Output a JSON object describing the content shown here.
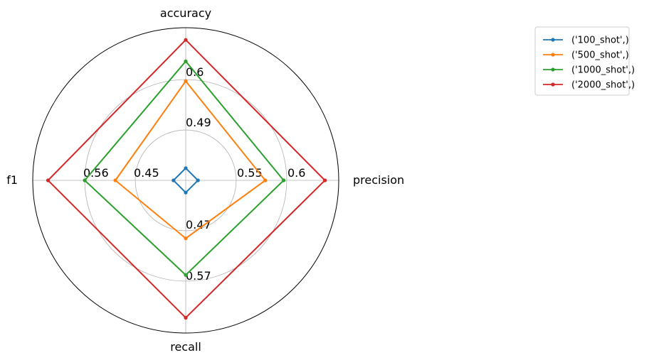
{
  "chart_data": {
    "type": "radar",
    "axes": [
      "accuracy",
      "precision",
      "recall",
      "f1"
    ],
    "tick_labels": {
      "accuracy": [
        "0.49",
        "0.6"
      ],
      "precision": [
        "0.55",
        "0.6"
      ],
      "recall": [
        "0.47",
        "0.57"
      ],
      "f1": [
        "0.45",
        "0.56"
      ]
    },
    "series": [
      {
        "name": "('100_shot',)",
        "color": "#1f77b4",
        "values": [
          0.08,
          0.08,
          0.08,
          0.08
        ]
      },
      {
        "name": "('500_shot',)",
        "color": "#ff7f0e",
        "values": [
          0.65,
          0.52,
          0.38,
          0.46
        ]
      },
      {
        "name": "('1000_shot',)",
        "color": "#2ca02c",
        "values": [
          0.78,
          0.64,
          0.62,
          0.66
        ]
      },
      {
        "name": "('2000_shot',)",
        "color": "#d62728",
        "values": [
          0.92,
          0.91,
          0.9,
          0.9
        ]
      }
    ],
    "grid": true,
    "legend_position": "top-right"
  }
}
